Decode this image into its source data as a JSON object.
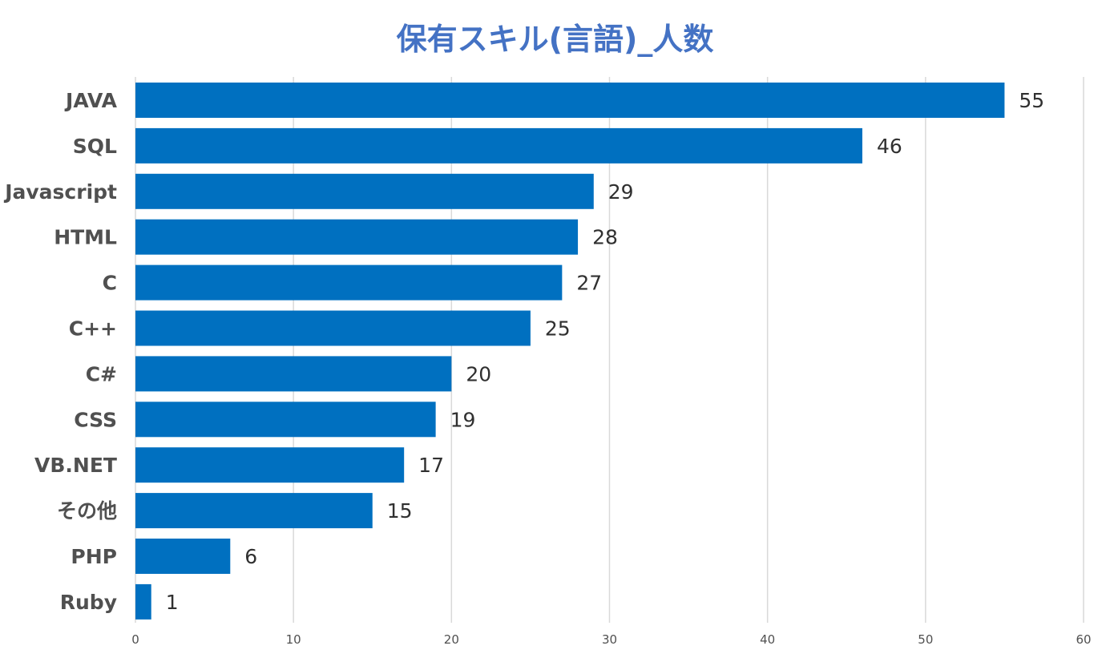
{
  "chart_data": {
    "type": "bar",
    "orientation": "horizontal",
    "title": "保有スキル(言語)_人数",
    "categories": [
      "JAVA",
      "SQL",
      "Javascript",
      "HTML",
      "C",
      "C++",
      "C#",
      "CSS",
      "VB.NET",
      "その他",
      "PHP",
      "Ruby"
    ],
    "values": [
      55,
      46,
      29,
      28,
      27,
      25,
      20,
      19,
      17,
      15,
      6,
      1
    ],
    "xlim": [
      0,
      60
    ],
    "xticks": [
      0,
      10,
      20,
      30,
      40,
      50,
      60
    ],
    "grid": true,
    "data_labels": true,
    "bar_color": "#0070c0",
    "title_color": "#4472c4"
  }
}
